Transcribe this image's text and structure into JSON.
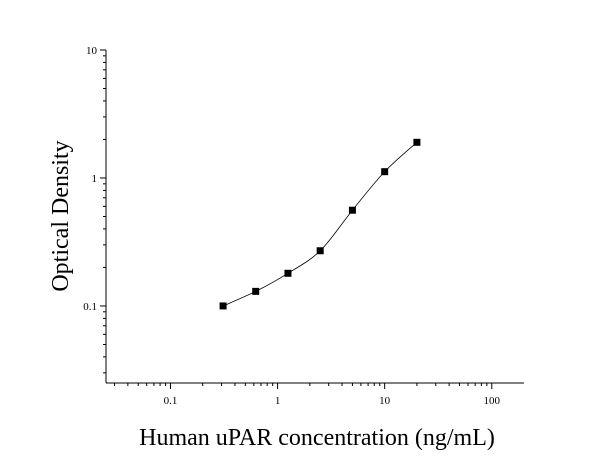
{
  "chart_data": {
    "type": "scatter",
    "xlabel": "Human uPAR concentration (ng/mL)",
    "ylabel": "Optical Density",
    "x_scale": "log",
    "y_scale": "log",
    "xlim": [
      0.025,
      200
    ],
    "ylim": [
      0.025,
      10
    ],
    "x_ticks": [
      {
        "value": 0.1,
        "label": "0.1"
      },
      {
        "value": 1,
        "label": "1"
      },
      {
        "value": 10,
        "label": "10"
      },
      {
        "value": 100,
        "label": "100"
      }
    ],
    "y_ticks": [
      {
        "value": 0.1,
        "label": "0.1"
      },
      {
        "value": 1,
        "label": "1"
      },
      {
        "value": 10,
        "label": "10"
      }
    ],
    "series": [
      {
        "x": [
          0.31,
          0.625,
          1.25,
          2.5,
          5,
          10,
          20
        ],
        "y": [
          0.1,
          0.13,
          0.18,
          0.27,
          0.56,
          1.12,
          1.9
        ]
      }
    ],
    "grid": false,
    "marker_color": "#000000",
    "line_color": "#000000"
  }
}
